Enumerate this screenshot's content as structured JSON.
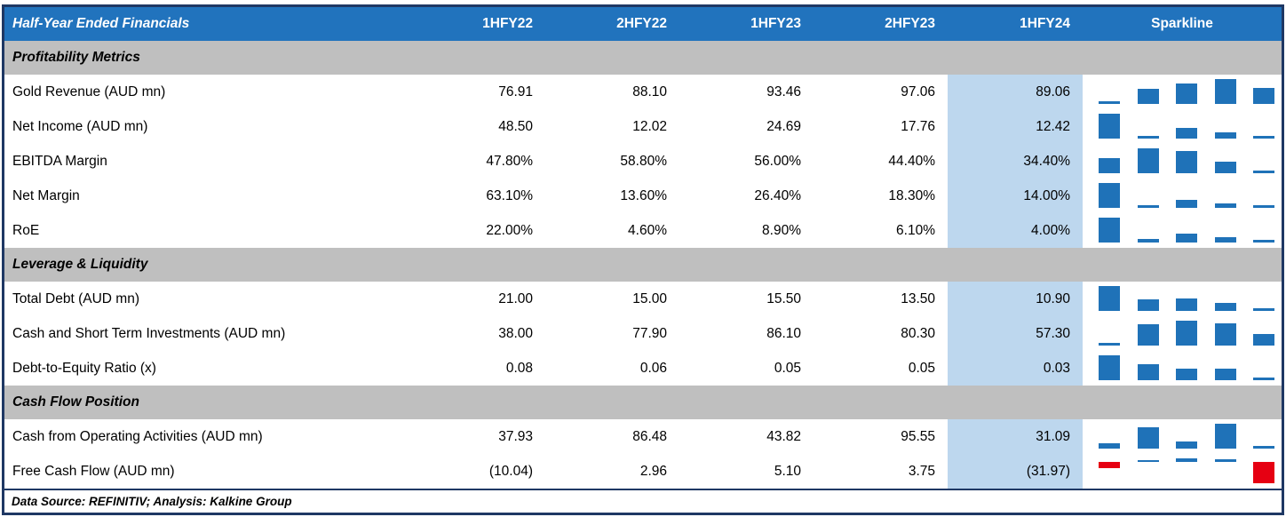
{
  "colors": {
    "header_bg": "#2173BD",
    "section_bg": "#BFBFBF",
    "highlight_bg": "#BDD7EE",
    "spark_positive": "#1F72B8",
    "spark_negative": "#E60012",
    "border": "#1F3864"
  },
  "chart_data": {
    "type": "table",
    "title": "Half-Year Ended Financials",
    "columns": [
      "1HFY22",
      "2HFY22",
      "1HFY23",
      "2HFY23",
      "1HFY24",
      "Sparkline"
    ],
    "highlight_column_index": 4,
    "sparkline_style": "column mini bar chart per row, min-max scaled, negative values red",
    "sections": [
      {
        "label": "Profitability Metrics",
        "rows": [
          {
            "label": "Gold Revenue (AUD mn)",
            "display": [
              "76.91",
              "88.10",
              "93.46",
              "97.06",
              "89.06"
            ],
            "values": [
              76.91,
              88.1,
              93.46,
              97.06,
              89.06
            ]
          },
          {
            "label": "Net Income (AUD mn)",
            "display": [
              "48.50",
              "12.02",
              "24.69",
              "17.76",
              "12.42"
            ],
            "values": [
              48.5,
              12.02,
              24.69,
              17.76,
              12.42
            ]
          },
          {
            "label": "EBITDA Margin",
            "display": [
              "47.80%",
              "58.80%",
              "56.00%",
              "44.40%",
              "34.40%"
            ],
            "values": [
              47.8,
              58.8,
              56.0,
              44.4,
              34.4
            ]
          },
          {
            "label": "Net Margin",
            "display": [
              "63.10%",
              "13.60%",
              "26.40%",
              "18.30%",
              "14.00%"
            ],
            "values": [
              63.1,
              13.6,
              26.4,
              18.3,
              14.0
            ]
          },
          {
            "label": "RoE",
            "display": [
              "22.00%",
              "4.60%",
              "8.90%",
              "6.10%",
              "4.00%"
            ],
            "values": [
              22.0,
              4.6,
              8.9,
              6.1,
              4.0
            ]
          }
        ]
      },
      {
        "label": "Leverage & Liquidity",
        "rows": [
          {
            "label": "Total Debt (AUD mn)",
            "display": [
              "21.00",
              "15.00",
              "15.50",
              "13.50",
              "10.90"
            ],
            "values": [
              21.0,
              15.0,
              15.5,
              13.5,
              10.9
            ]
          },
          {
            "label": "Cash and Short Term Investments (AUD mn)",
            "display": [
              "38.00",
              "77.90",
              "86.10",
              "80.30",
              "57.30"
            ],
            "values": [
              38.0,
              77.9,
              86.1,
              80.3,
              57.3
            ]
          },
          {
            "label": "Debt-to-Equity Ratio (x)",
            "display": [
              "0.08",
              "0.06",
              "0.05",
              "0.05",
              "0.03"
            ],
            "values": [
              0.08,
              0.06,
              0.05,
              0.05,
              0.03
            ]
          }
        ]
      },
      {
        "label": "Cash Flow Position",
        "rows": [
          {
            "label": "Cash from Operating Activities (AUD mn)",
            "display": [
              "37.93",
              "86.48",
              "43.82",
              "95.55",
              "31.09"
            ],
            "values": [
              37.93,
              86.48,
              43.82,
              95.55,
              31.09
            ]
          },
          {
            "label": "Free Cash Flow (AUD mn)",
            "display": [
              "(10.04)",
              "2.96",
              "5.10",
              "3.75",
              "(31.97)"
            ],
            "values": [
              -10.04,
              2.96,
              5.1,
              3.75,
              -31.97
            ]
          }
        ]
      }
    ],
    "footer": "Data Source: REFINITIV; Analysis: Kalkine Group"
  }
}
